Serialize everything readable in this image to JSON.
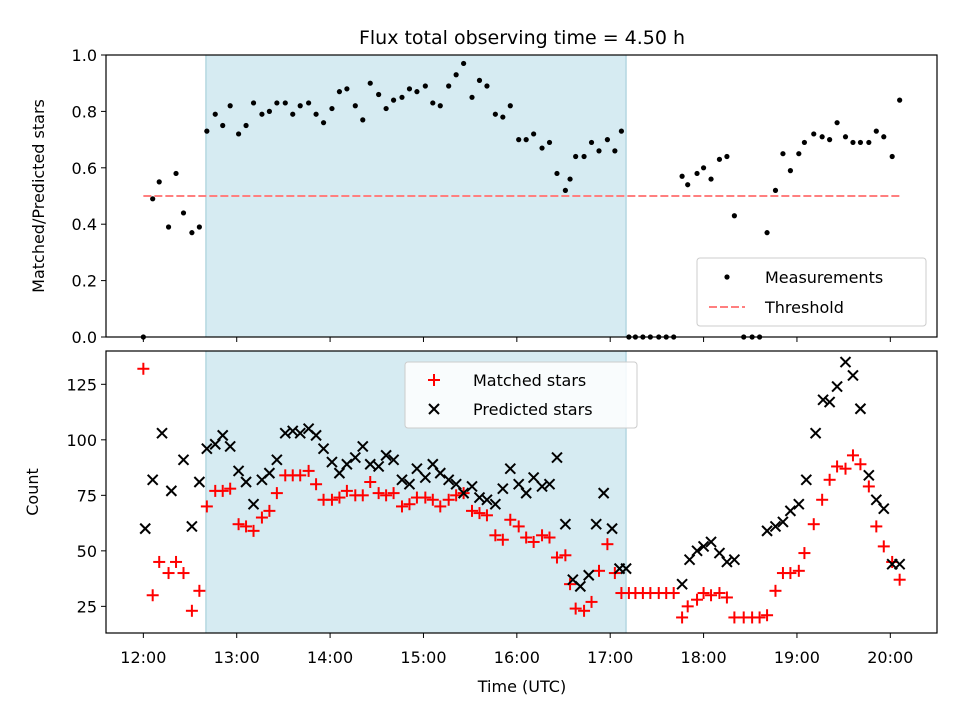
{
  "figure": {
    "title": "Flux total observing time = 4.50 h",
    "xlabel": "Time (UTC)",
    "x_ticks": [
      "12:00",
      "13:00",
      "14:00",
      "15:00",
      "16:00",
      "17:00",
      "18:00",
      "19:00",
      "20:00"
    ]
  },
  "chart_data": [
    {
      "type": "scatter",
      "panel": "top",
      "ylabel": "Matched/Predicted stars",
      "xlim": [
        11.6,
        20.5
      ],
      "ylim": [
        0,
        1.0
      ],
      "y_ticks": [
        0.0,
        0.2,
        0.4,
        0.6,
        0.8,
        1.0
      ],
      "shaded_span": [
        12.67,
        17.17
      ],
      "shade_color": "#add8e6",
      "legend": {
        "placement": "lower-right",
        "entries": [
          "Measurements",
          "Threshold"
        ]
      },
      "threshold": {
        "name": "Threshold",
        "value": 0.5,
        "x_range": [
          12.0,
          20.1
        ],
        "color": "#ff7f7f",
        "style": "dashed"
      },
      "series": [
        {
          "name": "Measurements",
          "color": "#000000",
          "x": [
            12.0,
            12.1,
            12.17,
            12.27,
            12.35,
            12.43,
            12.52,
            12.6,
            12.68,
            12.77,
            12.85,
            12.93,
            13.02,
            13.1,
            13.18,
            13.27,
            13.35,
            13.43,
            13.52,
            13.6,
            13.68,
            13.77,
            13.85,
            13.93,
            14.02,
            14.1,
            14.18,
            14.27,
            14.35,
            14.43,
            14.52,
            14.6,
            14.68,
            14.77,
            14.85,
            14.93,
            15.02,
            15.1,
            15.18,
            15.27,
            15.35,
            15.43,
            15.52,
            15.6,
            15.68,
            15.77,
            15.85,
            15.93,
            16.02,
            16.1,
            16.18,
            16.27,
            16.35,
            16.43,
            16.52,
            16.57,
            16.63,
            16.72,
            16.8,
            16.88,
            16.97,
            17.05,
            17.12,
            17.2,
            17.27,
            17.35,
            17.43,
            17.52,
            17.6,
            17.68,
            17.77,
            17.83,
            17.93,
            18.0,
            18.08,
            18.17,
            18.25,
            18.33,
            18.43,
            18.52,
            18.6,
            18.68,
            18.77,
            18.85,
            18.93,
            19.02,
            19.08,
            19.18,
            19.27,
            19.35,
            19.43,
            19.52,
            19.6,
            19.68,
            19.77,
            19.85,
            19.93,
            20.02,
            20.1
          ],
          "y": [
            0.0,
            0.49,
            0.55,
            0.39,
            0.58,
            0.44,
            0.37,
            0.39,
            0.73,
            0.79,
            0.75,
            0.82,
            0.72,
            0.75,
            0.83,
            0.79,
            0.8,
            0.83,
            0.83,
            0.79,
            0.82,
            0.83,
            0.79,
            0.76,
            0.81,
            0.87,
            0.88,
            0.82,
            0.77,
            0.9,
            0.86,
            0.81,
            0.84,
            0.85,
            0.88,
            0.87,
            0.89,
            0.83,
            0.82,
            0.89,
            0.93,
            0.97,
            0.85,
            0.91,
            0.89,
            0.79,
            0.78,
            0.82,
            0.7,
            0.7,
            0.72,
            0.67,
            0.69,
            0.58,
            0.52,
            0.56,
            0.64,
            0.64,
            0.69,
            0.66,
            0.7,
            0.66,
            0.73,
            0.0,
            0.0,
            0.0,
            0.0,
            0.0,
            0.0,
            0.0,
            0.57,
            0.54,
            0.58,
            0.6,
            0.56,
            0.63,
            0.64,
            0.43,
            0.0,
            0.0,
            0.0,
            0.37,
            0.52,
            0.65,
            0.59,
            0.65,
            0.69,
            0.72,
            0.71,
            0.7,
            0.76,
            0.71,
            0.69,
            0.69,
            0.69,
            0.73,
            0.71,
            0.64,
            0.84
          ]
        }
      ]
    },
    {
      "type": "scatter",
      "panel": "bottom",
      "ylabel": "Count",
      "xlim": [
        11.6,
        20.5
      ],
      "ylim": [
        13,
        140
      ],
      "y_ticks": [
        25,
        50,
        75,
        100,
        125
      ],
      "shaded_span": [
        12.67,
        17.17
      ],
      "shade_color": "#add8e6",
      "legend": {
        "placement": "upper-center",
        "entries": [
          "Matched stars",
          "Predicted stars"
        ]
      },
      "series": [
        {
          "name": "Matched stars",
          "marker": "plus",
          "color": "#ff0000",
          "x": [
            12.0,
            12.1,
            12.17,
            12.27,
            12.35,
            12.43,
            12.52,
            12.6,
            12.68,
            12.77,
            12.85,
            12.93,
            13.02,
            13.1,
            13.18,
            13.27,
            13.35,
            13.43,
            13.52,
            13.6,
            13.68,
            13.77,
            13.85,
            13.93,
            14.02,
            14.1,
            14.18,
            14.27,
            14.35,
            14.43,
            14.52,
            14.6,
            14.68,
            14.77,
            14.85,
            14.93,
            15.02,
            15.1,
            15.18,
            15.27,
            15.35,
            15.43,
            15.52,
            15.6,
            15.68,
            15.77,
            15.85,
            15.93,
            16.02,
            16.1,
            16.18,
            16.27,
            16.35,
            16.43,
            16.52,
            16.57,
            16.63,
            16.72,
            16.8,
            16.88,
            16.97,
            17.05,
            17.12,
            17.2,
            17.27,
            17.35,
            17.43,
            17.52,
            17.6,
            17.68,
            17.77,
            17.83,
            17.93,
            18.0,
            18.08,
            18.17,
            18.25,
            18.33,
            18.43,
            18.52,
            18.6,
            18.68,
            18.77,
            18.85,
            18.93,
            19.02,
            19.08,
            19.18,
            19.27,
            19.35,
            19.43,
            19.52,
            19.6,
            19.68,
            19.77,
            19.85,
            19.93,
            20.02,
            20.1
          ],
          "y": [
            132,
            30,
            45,
            40,
            45,
            40,
            23,
            32,
            70,
            77,
            77,
            78,
            62,
            61,
            59,
            65,
            68,
            76,
            84,
            84,
            84,
            86,
            80,
            73,
            73,
            74,
            77,
            75,
            75,
            81,
            76,
            75,
            76,
            70,
            71,
            74,
            74,
            73,
            70,
            73,
            75,
            76,
            68,
            67,
            66,
            57,
            55,
            64,
            61,
            56,
            54,
            57,
            56,
            47,
            48,
            35,
            24,
            23,
            27,
            41,
            53,
            40,
            31,
            31,
            31,
            31,
            31,
            31,
            31,
            31,
            20,
            25,
            28,
            31,
            30,
            31,
            29,
            20,
            20,
            20,
            20,
            21,
            32,
            40,
            40,
            41,
            49,
            62,
            73,
            82,
            88,
            87,
            93,
            89,
            79,
            61,
            52,
            45,
            37
          ]
        },
        {
          "name": "Predicted stars",
          "marker": "x",
          "color": "#000000",
          "x": [
            12.02,
            12.1,
            12.2,
            12.3,
            12.43,
            12.52,
            12.6,
            12.68,
            12.77,
            12.85,
            12.93,
            13.02,
            13.1,
            13.18,
            13.27,
            13.35,
            13.43,
            13.52,
            13.6,
            13.68,
            13.77,
            13.85,
            13.93,
            14.02,
            14.1,
            14.18,
            14.27,
            14.35,
            14.43,
            14.52,
            14.6,
            14.68,
            14.77,
            14.85,
            14.93,
            15.02,
            15.1,
            15.18,
            15.27,
            15.35,
            15.43,
            15.52,
            15.6,
            15.68,
            15.77,
            15.85,
            15.93,
            16.02,
            16.1,
            16.18,
            16.27,
            16.35,
            16.43,
            16.52,
            16.6,
            16.68,
            16.77,
            16.85,
            16.93,
            17.02,
            17.1,
            17.17,
            17.77,
            17.85,
            17.93,
            18.0,
            18.08,
            18.17,
            18.25,
            18.33,
            18.68,
            18.77,
            18.85,
            18.93,
            19.02,
            19.1,
            19.2,
            19.28,
            19.35,
            19.43,
            19.52,
            19.6,
            19.68,
            19.77,
            19.85,
            19.93,
            20.02,
            20.1
          ],
          "y": [
            60,
            82,
            103,
            77,
            91,
            61,
            81,
            96,
            98,
            102,
            97,
            86,
            81,
            71,
            82,
            85,
            91,
            103,
            104,
            103,
            105,
            102,
            96,
            90,
            85,
            89,
            92,
            97,
            89,
            88,
            93,
            91,
            82,
            80,
            87,
            83,
            89,
            85,
            82,
            80,
            76,
            79,
            74,
            73,
            71,
            78,
            87,
            80,
            76,
            83,
            79,
            80,
            92,
            62,
            37,
            34,
            39,
            62,
            76,
            60,
            42,
            42,
            35,
            46,
            50,
            52,
            54,
            49,
            45,
            46,
            59,
            61,
            63,
            68,
            71,
            82,
            103,
            118,
            117,
            124,
            135,
            129,
            114,
            84,
            73,
            69,
            44,
            44
          ]
        }
      ]
    }
  ]
}
